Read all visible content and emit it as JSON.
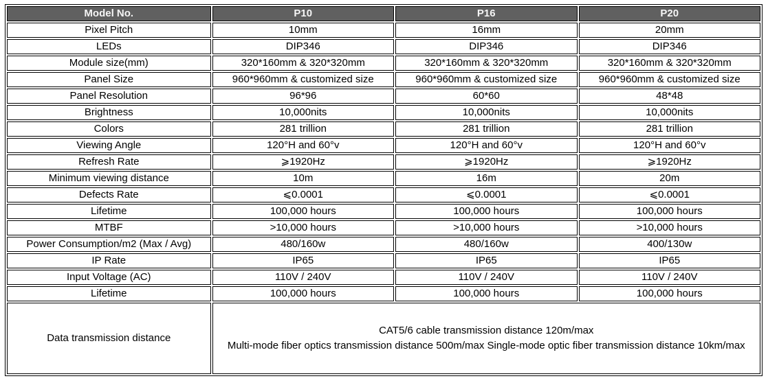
{
  "table": {
    "header": {
      "label": "Model No.",
      "columns": [
        "P10",
        "P16",
        "P20"
      ]
    },
    "rows": [
      {
        "label": "Pixel Pitch",
        "values": [
          "10mm",
          "16mm",
          "20mm"
        ]
      },
      {
        "label": "LEDs",
        "values": [
          "DIP346",
          "DIP346",
          "DIP346"
        ]
      },
      {
        "label": "Module size(mm)",
        "values": [
          "320*160mm & 320*320mm",
          "320*160mm & 320*320mm",
          "320*160mm & 320*320mm"
        ]
      },
      {
        "label": "Panel Size",
        "values": [
          "960*960mm & customized size",
          "960*960mm & customized size",
          "960*960mm & customized size"
        ]
      },
      {
        "label": "Panel Resolution",
        "values": [
          "96*96",
          "60*60",
          "48*48"
        ]
      },
      {
        "label": "Brightness",
        "values": [
          "10,000nits",
          "10,000nits",
          "10,000nits"
        ]
      },
      {
        "label": "Colors",
        "values": [
          "281 trillion",
          "281 trillion",
          "281 trillion"
        ]
      },
      {
        "label": "Viewing Angle",
        "values": [
          "120°H and 60°v",
          "120°H and 60°v",
          "120°H and 60°v"
        ]
      },
      {
        "label": "Refresh Rate",
        "values": [
          "⩾1920Hz",
          "⩾1920Hz",
          "⩾1920Hz"
        ]
      },
      {
        "label": "Minimum viewing distance",
        "values": [
          "10m",
          "16m",
          "20m"
        ]
      },
      {
        "label": "Defects Rate",
        "values": [
          "⩽0.0001",
          "⩽0.0001",
          "⩽0.0001"
        ]
      },
      {
        "label": "Lifetime",
        "values": [
          "100,000 hours",
          "100,000 hours",
          "100,000 hours"
        ]
      },
      {
        "label": "MTBF",
        "values": [
          ">10,000 hours",
          ">10,000 hours",
          ">10,000 hours"
        ]
      },
      {
        "label": "Power Consumption/m2 (Max / Avg)",
        "values": [
          "480/160w",
          "480/160w",
          "400/130w"
        ]
      },
      {
        "label": "IP Rate",
        "values": [
          "IP65",
          "IP65",
          "IP65"
        ]
      },
      {
        "label": "Input Voltage (AC)",
        "values": [
          "110V / 240V",
          "110V / 240V",
          "110V / 240V"
        ]
      },
      {
        "label": "Lifetime",
        "values": [
          "100,000 hours",
          "100,000 hours",
          "100,000 hours"
        ]
      }
    ],
    "footer": {
      "label": "Data transmission distance",
      "line1": "CAT5/6 cable transmission distance 120m/max",
      "line2": "Multi-mode fiber optics transmission distance 500m/max Single-mode optic fiber transmission distance 10km/max"
    }
  },
  "colors": {
    "header_bg": "#606060",
    "header_text": "#f5f5f5",
    "border": "#000000"
  }
}
